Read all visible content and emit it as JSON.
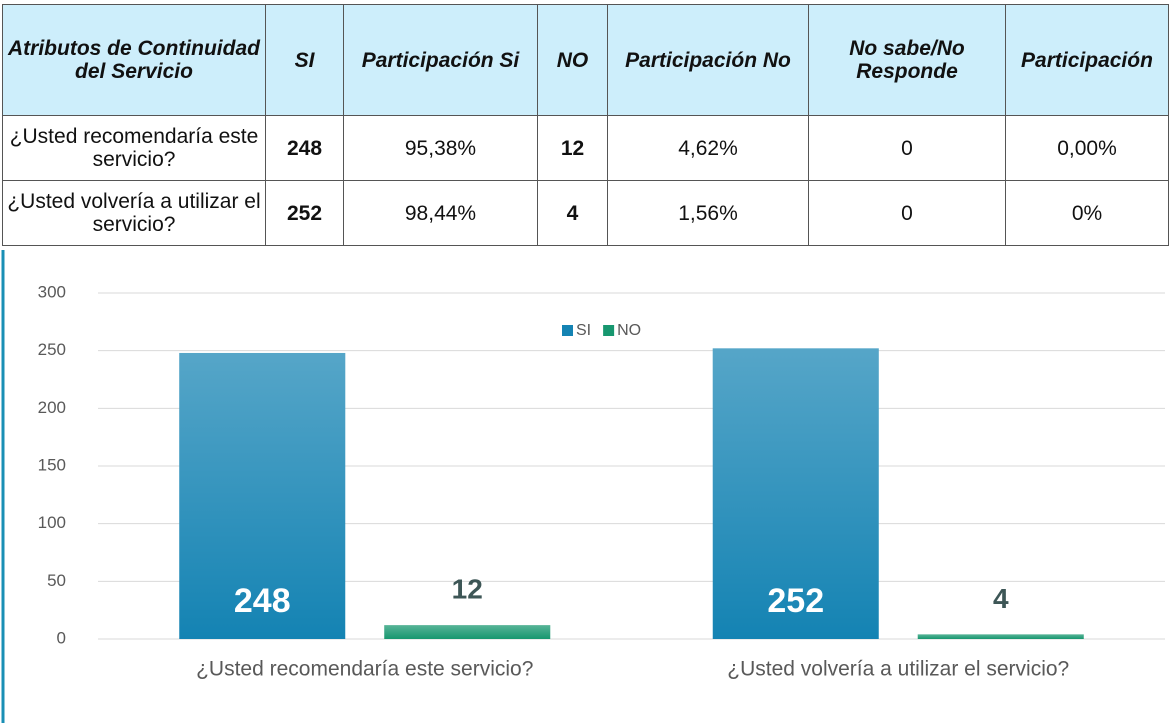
{
  "table": {
    "header": [
      "Atributos de Continuidad del Servicio",
      "SI",
      "Participación Si",
      "NO",
      "Participación No",
      "No sabe/No Responde",
      "Participación"
    ],
    "rows": [
      [
        "¿Usted recomendaría este servicio?",
        248,
        "95,38%",
        12,
        "4,62%",
        0,
        "0,00%"
      ],
      [
        "¿Usted volvería a utilizar el servicio?",
        252,
        "98,44%",
        4,
        "1,56%",
        0,
        "0%"
      ]
    ]
  },
  "chart_data": {
    "type": "bar",
    "categories": [
      "¿Usted recomendaría este servicio?",
      "¿Usted volvería a utilizar el servicio?"
    ],
    "series": [
      {
        "name": "SI",
        "color": "#1483b3",
        "values": [
          248,
          252
        ]
      },
      {
        "name": "NO",
        "color": "#17976f",
        "values": [
          12,
          4
        ]
      }
    ],
    "ylim": [
      0,
      300
    ],
    "yticks": [
      0,
      50,
      100,
      150,
      200,
      250,
      300
    ],
    "grid": true,
    "legend": "top"
  }
}
